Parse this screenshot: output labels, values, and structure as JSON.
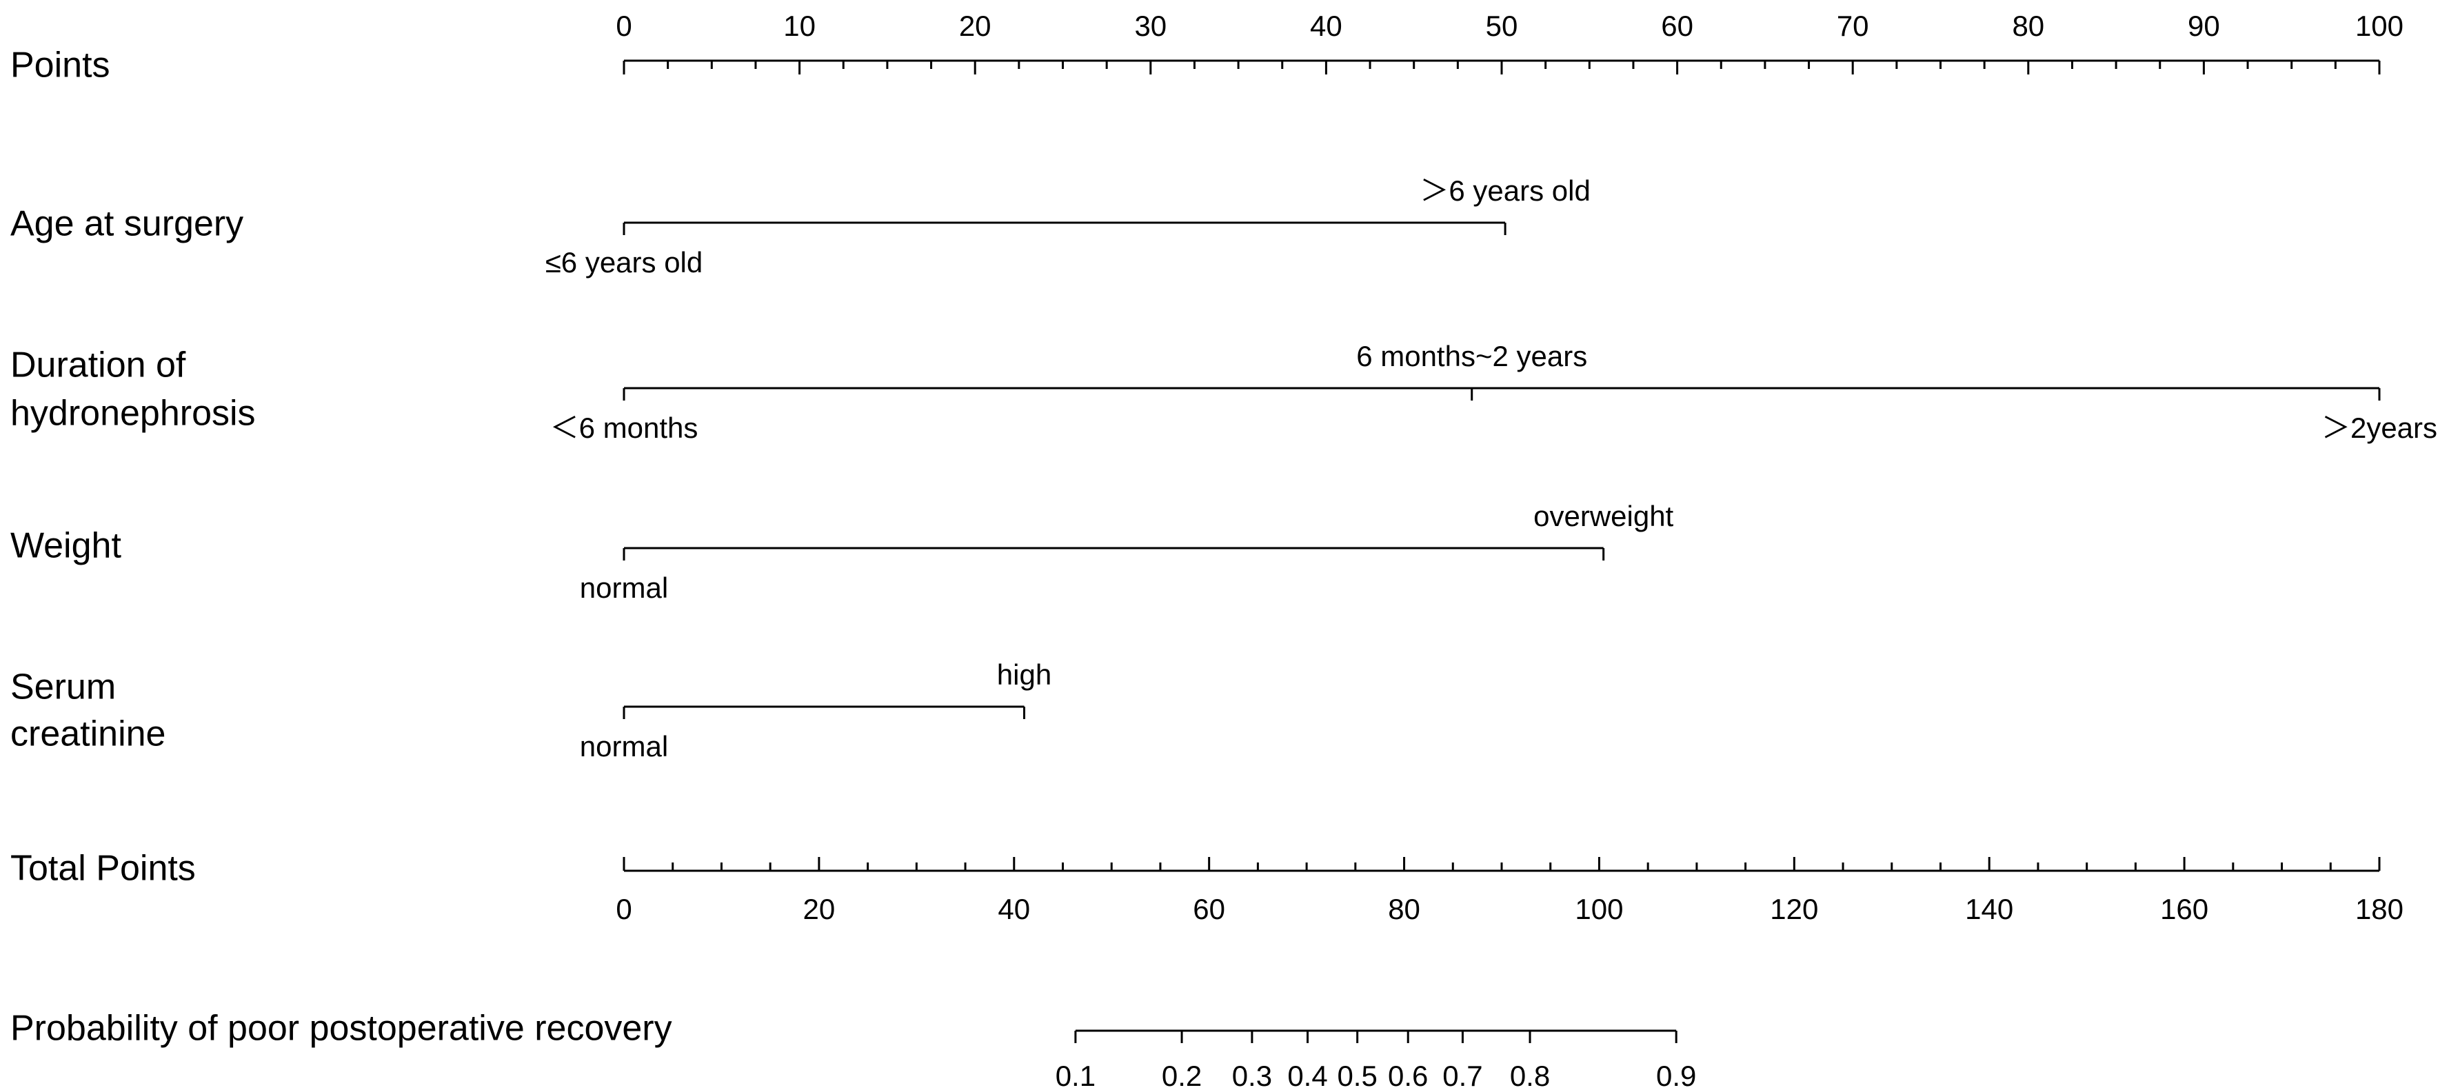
{
  "chart_data": {
    "type": "nomogram",
    "points_axis": {
      "label": "Points",
      "range": [
        0,
        100
      ],
      "major_ticks": [
        0,
        10,
        20,
        30,
        40,
        50,
        60,
        70,
        80,
        90,
        100
      ],
      "tick_labels": [
        "0",
        "10",
        "20",
        "30",
        "40",
        "50",
        "60",
        "70",
        "80",
        "90",
        "100"
      ],
      "minor_step": 2.5
    },
    "predictors": [
      {
        "label_lines": [
          "Age at surgery"
        ],
        "levels": [
          {
            "label": "≤6 years old",
            "points": 0,
            "label_side": "below"
          },
          {
            "label": "＞6 years old",
            "points": 50.2,
            "label_side": "above"
          }
        ]
      },
      {
        "label_lines": [
          "Duration of",
          "hydronephrosis"
        ],
        "levels": [
          {
            "label": "＜6 months",
            "points": 0,
            "label_side": "below"
          },
          {
            "label": "6 months~2 years",
            "points": 48.3,
            "label_side": "above"
          },
          {
            "label": "＞2years",
            "points": 100,
            "label_side": "below"
          }
        ]
      },
      {
        "label_lines": [
          "Weight"
        ],
        "levels": [
          {
            "label": "normal",
            "points": 0,
            "label_side": "below"
          },
          {
            "label": "overweight",
            "points": 55.8,
            "label_side": "above"
          }
        ]
      },
      {
        "label_lines": [
          "Serum",
          "creatinine"
        ],
        "levels": [
          {
            "label": "normal",
            "points": 0,
            "label_side": "below"
          },
          {
            "label": "high",
            "points": 22.8,
            "label_side": "above"
          }
        ]
      }
    ],
    "total_points_axis": {
      "label": "Total Points",
      "range": [
        0,
        180
      ],
      "major_ticks": [
        0,
        20,
        40,
        60,
        80,
        100,
        120,
        140,
        160,
        180
      ],
      "tick_labels": [
        "0",
        "20",
        "40",
        "60",
        "80",
        "100",
        "120",
        "140",
        "160",
        "180"
      ],
      "minor_step": 5
    },
    "probability_axis": {
      "label": "Probability of poor postoperative recovery",
      "ticks": [
        {
          "p": 0.1,
          "total_points": 46.3
        },
        {
          "p": 0.2,
          "total_points": 57.2
        },
        {
          "p": 0.3,
          "total_points": 64.4
        },
        {
          "p": 0.4,
          "total_points": 70.1
        },
        {
          "p": 0.5,
          "total_points": 75.2
        },
        {
          "p": 0.6,
          "total_points": 80.4
        },
        {
          "p": 0.7,
          "total_points": 86.0
        },
        {
          "p": 0.8,
          "total_points": 92.9
        },
        {
          "p": 0.9,
          "total_points": 107.9
        }
      ],
      "tick_labels": [
        "0.1",
        "0.2",
        "0.3",
        "0.4",
        "0.5",
        "0.6",
        "0.7",
        "0.8",
        "0.9"
      ]
    }
  }
}
